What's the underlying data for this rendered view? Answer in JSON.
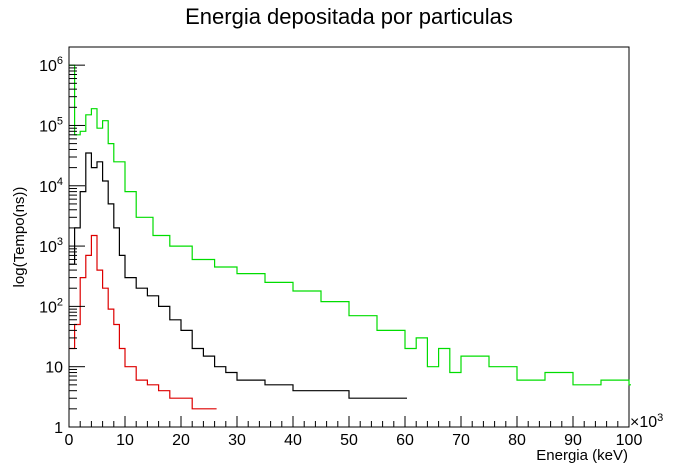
{
  "chart_data": {
    "type": "line",
    "title": "Energia depositada por particulas",
    "xlabel": "Energia (keV)",
    "ylabel": "log(Tempo(ns))",
    "x_multiplier": "×10",
    "x_multiplier_exp": "3",
    "xlim": [
      0,
      100
    ],
    "ylim": [
      1,
      2000000
    ],
    "yscale": "log",
    "grid": false,
    "x_ticks": [
      0,
      10,
      20,
      30,
      40,
      50,
      60,
      70,
      80,
      90,
      100
    ],
    "y_ticks": [
      {
        "value": 1,
        "base": "1",
        "exp": ""
      },
      {
        "value": 10,
        "base": "10",
        "exp": ""
      },
      {
        "value": 100,
        "base": "10",
        "exp": "2"
      },
      {
        "value": 1000,
        "base": "10",
        "exp": "3"
      },
      {
        "value": 10000,
        "base": "10",
        "exp": "4"
      },
      {
        "value": 100000,
        "base": "10",
        "exp": "5"
      },
      {
        "value": 1000000,
        "base": "10",
        "exp": "6"
      }
    ],
    "series": [
      {
        "color": "#00dd00",
        "x": [
          0,
          1,
          2,
          3,
          4,
          5,
          6,
          7,
          8,
          10,
          12,
          15,
          18,
          22,
          26,
          30,
          35,
          40,
          45,
          50,
          55,
          60,
          62,
          64,
          66,
          68,
          70,
          75,
          80,
          85,
          90,
          95,
          100
        ],
        "y": [
          1000000,
          70000,
          80000,
          150000,
          190000,
          90000,
          120000,
          50000,
          25000,
          8000,
          3000,
          1500,
          1000,
          600,
          450,
          350,
          250,
          180,
          120,
          70,
          40,
          20,
          30,
          10,
          20,
          8,
          15,
          10,
          6,
          8,
          5,
          6,
          5
        ]
      },
      {
        "color": "#000000",
        "x": [
          0,
          1,
          2,
          3,
          4,
          5,
          6,
          7,
          8,
          9,
          10,
          12,
          14,
          16,
          18,
          20,
          22,
          24,
          26,
          28,
          30,
          35,
          40,
          45,
          50,
          55,
          60
        ],
        "y": [
          500,
          2000,
          8000,
          35000,
          20000,
          25000,
          12000,
          5000,
          2000,
          700,
          300,
          200,
          150,
          100,
          60,
          40,
          20,
          15,
          10,
          8,
          6,
          5,
          4,
          4,
          3,
          3,
          3
        ]
      },
      {
        "color": "#dd0000",
        "x": [
          0,
          1,
          2,
          3,
          4,
          5,
          6,
          7,
          8,
          9,
          10,
          12,
          14,
          16,
          18,
          20,
          22,
          24,
          26
        ],
        "y": [
          20,
          50,
          300,
          700,
          1500,
          400,
          200,
          90,
          50,
          20,
          10,
          6,
          5,
          4,
          3,
          3,
          2,
          2,
          2
        ]
      }
    ]
  }
}
